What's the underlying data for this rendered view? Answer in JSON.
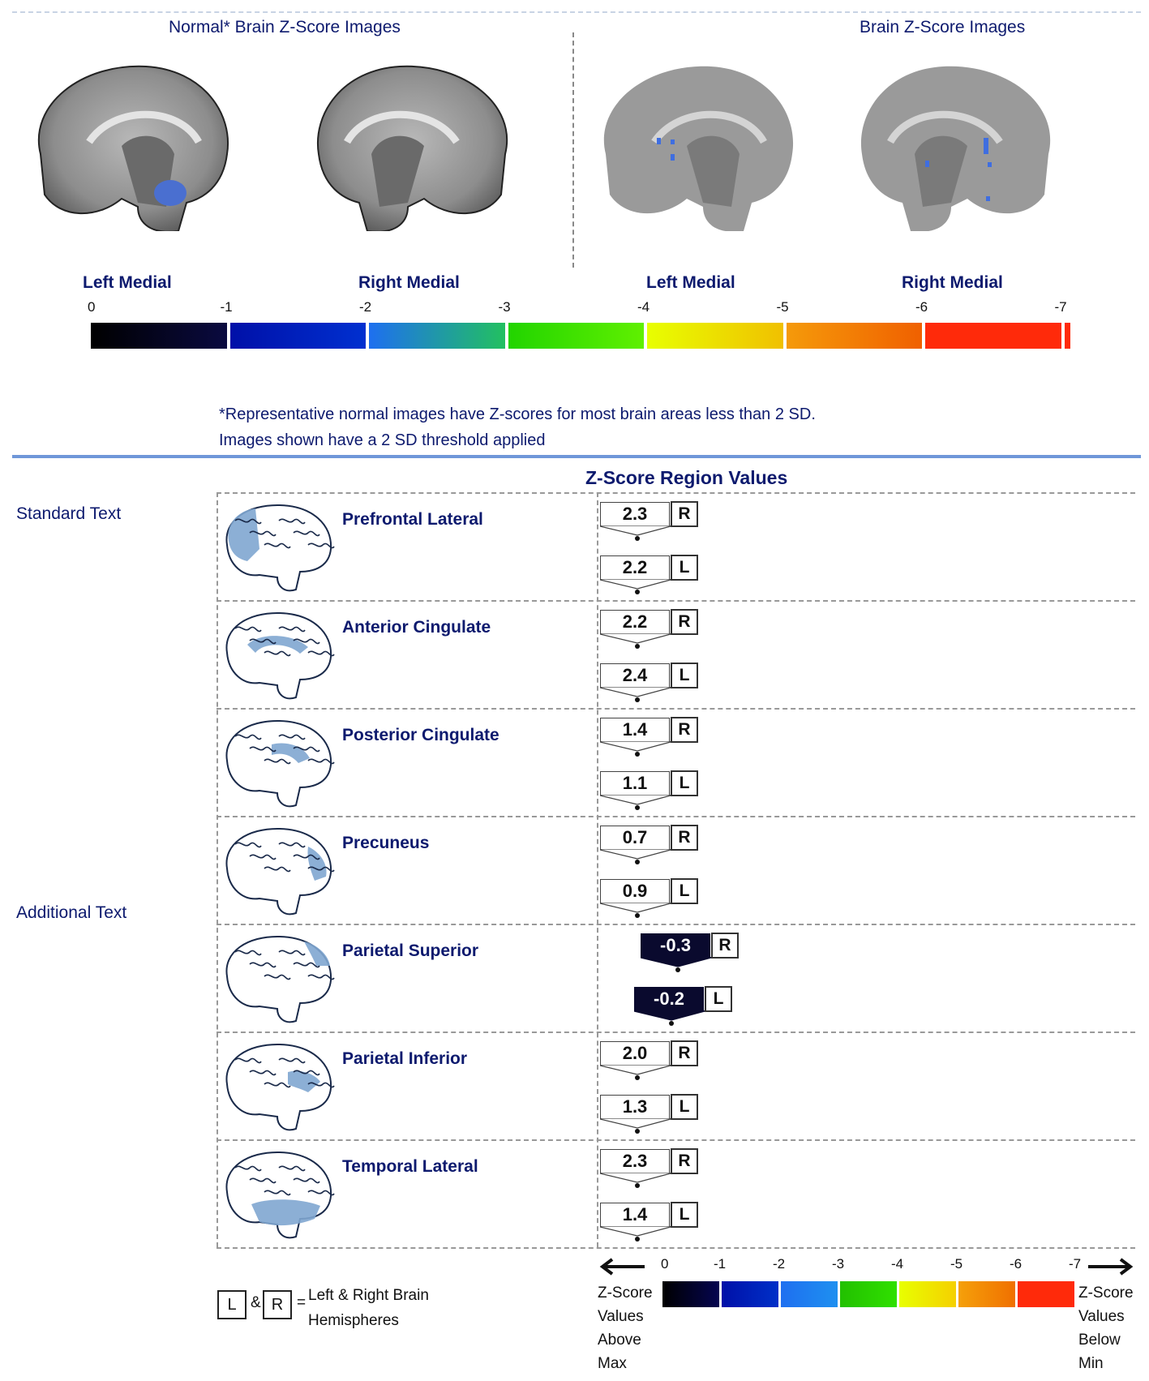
{
  "top": {
    "normal_title": "Normal* Brain Z-Score Images",
    "patient_title": "Brain Z-Score Images",
    "view_labels": [
      "Left Medial",
      "Right Medial",
      "Left Medial",
      "Right Medial"
    ]
  },
  "colorbar": {
    "ticks": [
      "0",
      "-1",
      "-2",
      "-3",
      "-4",
      "-5",
      "-6",
      "-7"
    ],
    "colors": [
      "#000000",
      "#0010a8",
      "#1e6ff0",
      "#22d400",
      "#e8ff00",
      "#f59a0a",
      "#ff2a0a"
    ]
  },
  "notes": {
    "line1": "*Representative normal images have Z-scores for most brain areas less than 2 SD.",
    "line2": "Images shown have a 2 SD threshold applied"
  },
  "side": {
    "standard": "Standard Text",
    "additional": "Additional Text"
  },
  "table": {
    "title": "Z-Score Region Values",
    "regions": [
      {
        "name": "Prefrontal Lateral",
        "right": "2.3",
        "left": "2.2",
        "right_value": 2.3,
        "left_value": 2.2
      },
      {
        "name": "Anterior Cingulate",
        "right": "2.2",
        "left": "2.4",
        "right_value": 2.2,
        "left_value": 2.4
      },
      {
        "name": "Posterior Cingulate",
        "right": "1.4",
        "left": "1.1",
        "right_value": 1.4,
        "left_value": 1.1
      },
      {
        "name": "Precuneus",
        "right": "0.7",
        "left": "0.9",
        "right_value": 0.7,
        "left_value": 0.9
      },
      {
        "name": "Parietal Superior",
        "right": "-0.3",
        "left": "-0.2",
        "right_value": -0.3,
        "left_value": -0.2
      },
      {
        "name": "Parietal Inferior",
        "right": "2.0",
        "left": "1.3",
        "right_value": 2.0,
        "left_value": 1.3
      },
      {
        "name": "Temporal Lateral",
        "right": "2.3",
        "left": "1.4",
        "right_value": 2.3,
        "left_value": 1.4
      }
    ],
    "hemi_r": "R",
    "hemi_l": "L"
  },
  "legend": {
    "l": "L",
    "amp": "&",
    "r": "R",
    "eq": "=",
    "text1": "Left & Right Brain",
    "text2": "Hemispheres",
    "left_note": [
      "Z-Score",
      "Values",
      "Above",
      "Max"
    ],
    "right_note": [
      "Z-Score",
      "Values",
      "Below",
      "Min"
    ],
    "ticks": [
      "0",
      "-1",
      "-2",
      "-3",
      "-4",
      "-5",
      "-6",
      "-7"
    ]
  }
}
